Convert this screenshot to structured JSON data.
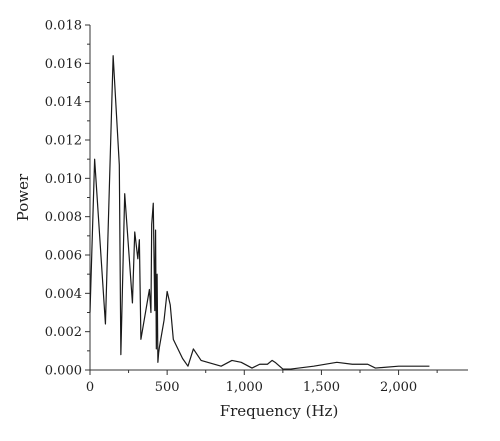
{
  "chart_data": {
    "type": "line",
    "title": "",
    "xlabel": "Frequency (Hz)",
    "ylabel": "Power",
    "xlim": [
      0,
      2450
    ],
    "ylim": [
      0,
      0.018
    ],
    "grid": false,
    "legend": "none",
    "line_color": "#1a1a1a",
    "x_ticks": [
      {
        "value": 0,
        "label": "0"
      },
      {
        "value": 500,
        "label": "500"
      },
      {
        "value": 1000,
        "label": "1,000"
      },
      {
        "value": 1500,
        "label": "1,500"
      },
      {
        "value": 2000,
        "label": "2,000"
      }
    ],
    "y_ticks": [
      {
        "value": 0,
        "label": "0.000"
      },
      {
        "value": 0.002,
        "label": "0.002"
      },
      {
        "value": 0.004,
        "label": "0.004"
      },
      {
        "value": 0.006,
        "label": "0.006"
      },
      {
        "value": 0.008,
        "label": "0.008"
      },
      {
        "value": 0.01,
        "label": "0.010"
      },
      {
        "value": 0.012,
        "label": "0.012"
      },
      {
        "value": 0.014,
        "label": "0.014"
      },
      {
        "value": 0.016,
        "label": "0.016"
      },
      {
        "value": 0.018,
        "label": "0.018"
      }
    ],
    "series": [
      {
        "x": [
          0,
          30,
          100,
          150,
          190,
          200,
          225,
          275,
          290,
          310,
          320,
          330,
          385,
          395,
          400,
          410,
          420,
          425,
          430,
          435,
          440,
          445,
          450,
          480,
          500,
          520,
          540,
          600,
          635,
          670,
          695,
          720,
          850,
          920,
          980,
          1050,
          1100,
          1150,
          1180,
          1200,
          1250,
          1300,
          1450,
          1600,
          1700,
          1800,
          1850,
          2000,
          2100,
          2200
        ],
        "y": [
          0.003,
          0.011,
          0.0024,
          0.0164,
          0.0107,
          0.0008,
          0.0092,
          0.0035,
          0.0072,
          0.0058,
          0.0068,
          0.0016,
          0.0042,
          0.003,
          0.0076,
          0.0087,
          0.0031,
          0.0073,
          0.0011,
          0.005,
          0.0004,
          0.0009,
          0.0012,
          0.0026,
          0.0041,
          0.0034,
          0.0016,
          0.0006,
          0.0002,
          0.0011,
          0.0008,
          0.0005,
          0.0002,
          0.0005,
          0.0004,
          0.0001,
          0.0003,
          0.0003,
          0.0005,
          0.0004,
          5e-05,
          5e-05,
          0.0002,
          0.0004,
          0.0003,
          0.0003,
          0.0001,
          0.0002,
          0.0002,
          0.0002
        ]
      }
    ]
  }
}
